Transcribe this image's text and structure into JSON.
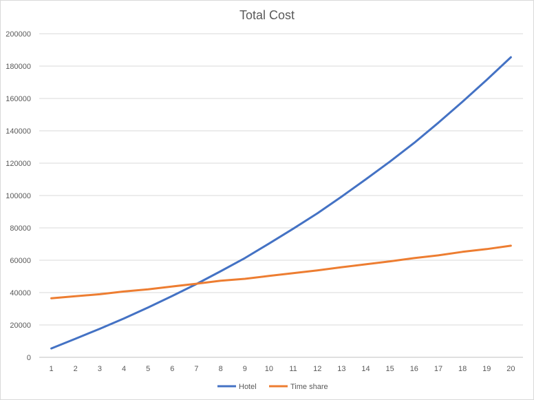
{
  "chart_data": {
    "type": "line",
    "title": "Total Cost",
    "xlabel": "",
    "ylabel": "",
    "categories": [
      "1",
      "2",
      "3",
      "4",
      "5",
      "6",
      "7",
      "8",
      "9",
      "10",
      "11",
      "12",
      "13",
      "14",
      "15",
      "16",
      "17",
      "18",
      "19",
      "20"
    ],
    "ylim": [
      0,
      200000
    ],
    "yticks": [
      "0",
      "20000",
      "40000",
      "60000",
      "80000",
      "100000",
      "120000",
      "140000",
      "160000",
      "180000",
      "200000"
    ],
    "grid": true,
    "legend_position": "bottom",
    "series": [
      {
        "name": "Hotel",
        "color": "#4472c4",
        "values": [
          5500,
          11500,
          17600,
          24000,
          30800,
          37900,
          45300,
          53200,
          61300,
          70300,
          79500,
          89000,
          99300,
          110000,
          121000,
          132500,
          145000,
          158000,
          171500,
          185500
        ]
      },
      {
        "name": "Time share",
        "color": "#ed7d31",
        "values": [
          36500,
          37800,
          39000,
          40700,
          42000,
          43800,
          45500,
          47300,
          48500,
          50300,
          52000,
          53700,
          55700,
          57500,
          59300,
          61300,
          63000,
          65200,
          66900,
          69000
        ]
      }
    ]
  }
}
